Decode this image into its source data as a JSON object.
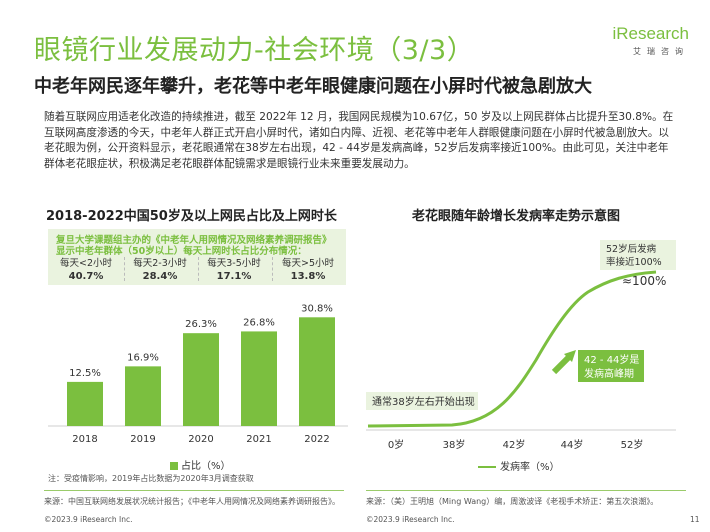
{
  "header": {
    "title": "眼镜行业发展动力-社会环境（3/3）",
    "subtitle": "中老年网民逐年攀升，老花等中老年眼健康问题在小屏时代被急剧放大",
    "logo_brand": "iResearch",
    "logo_sub": "艾瑞咨询"
  },
  "intro": {
    "text": "随着互联网应用适老化改造的持续推进，截至 2022年 12 月，我国网民规模为10.67亿，50 岁及以上网民群体占比提升至30.8%。在互联网高度渗透的今天，中老年人群正式开启小屏时代，诸如白内障、近视、老花等中老年人群眼健康问题在小屏时代被急剧放大。以老花眼为例，公开资料显示，老花眼通常在38岁左右出现，42 - 44岁是发病高峰，52岁后发病率接近100%。由此可见，关注中老年群体老花眼症状，积极满足老花眼群体配镜需求是眼镜行业未来重要发展动力。"
  },
  "left_section": {
    "title": "2018-2022中国50岁及以上网民占比及上网时长",
    "info_line1": "复旦大学课题组主办的《中老年人用网情况及网络素养调研报告》",
    "info_line2": "显示中老年群体（50岁以上）每天上网时长占比分布情况：",
    "usage": [
      {
        "label": "每天<2小时",
        "value": "40.7%"
      },
      {
        "label": "每天2-3小时",
        "value": "28.4%"
      },
      {
        "label": "每天3-5小时",
        "value": "17.1%"
      },
      {
        "label": "每天>5小时",
        "value": "13.8%"
      }
    ],
    "legend": "占比（%）",
    "note": "注：受疫情影响，2019年占比数据为2020年3月调查获取",
    "source": "来源：中国互联网络发展状况统计报告；《中老年人用网情况及网络素养调研报告》。",
    "copyright": "©2023.9 iResearch Inc."
  },
  "chart_data": [
    {
      "type": "bar",
      "categories": [
        "2018",
        "2019",
        "2020",
        "2021",
        "2022"
      ],
      "values": [
        12.5,
        16.9,
        26.3,
        26.8,
        30.8
      ],
      "data_labels": [
        "12.5%",
        "16.9%",
        "26.3%",
        "26.8%",
        "30.8%"
      ],
      "series_name": "占比（%）",
      "ylim": [
        0,
        34
      ],
      "grid": false,
      "legend_position": "bottom",
      "color": "#7bbf3f"
    },
    {
      "type": "line",
      "title": "老花眼随年龄增长发病率走势示意图",
      "categories": [
        "0岁",
        "38岁",
        "42岁",
        "44岁",
        "52岁"
      ],
      "series_name": "发病率（%）",
      "color": "#7bbf3f",
      "annotations": [
        {
          "text": "通常38岁左右开始出现",
          "anchor": "38岁"
        },
        {
          "text": "42 - 44岁是发病高峰期",
          "anchor": "42岁-44岁"
        },
        {
          "text": "52岁后发病率接近100%",
          "anchor": "52岁"
        },
        {
          "text": "≈100%",
          "anchor": "52岁"
        }
      ],
      "legend_position": "bottom"
    }
  ],
  "right_section": {
    "source": "来源：（美）王明旭（Ming Wang）编，周激波译《老视手术矫正：第五次浪潮》。",
    "copyright": "©2023.9 iResearch Inc.",
    "ann_onset": "通常38岁左右开始出现",
    "ann_peak_1": "42 - 44岁是",
    "ann_peak_2": "发病高峰期",
    "ann_52_1": "52岁后发病",
    "ann_52_2": "率接近100%",
    "ann_100": "≈100%",
    "legend": "发病率（%）"
  },
  "footer": {
    "page_number": "11"
  }
}
